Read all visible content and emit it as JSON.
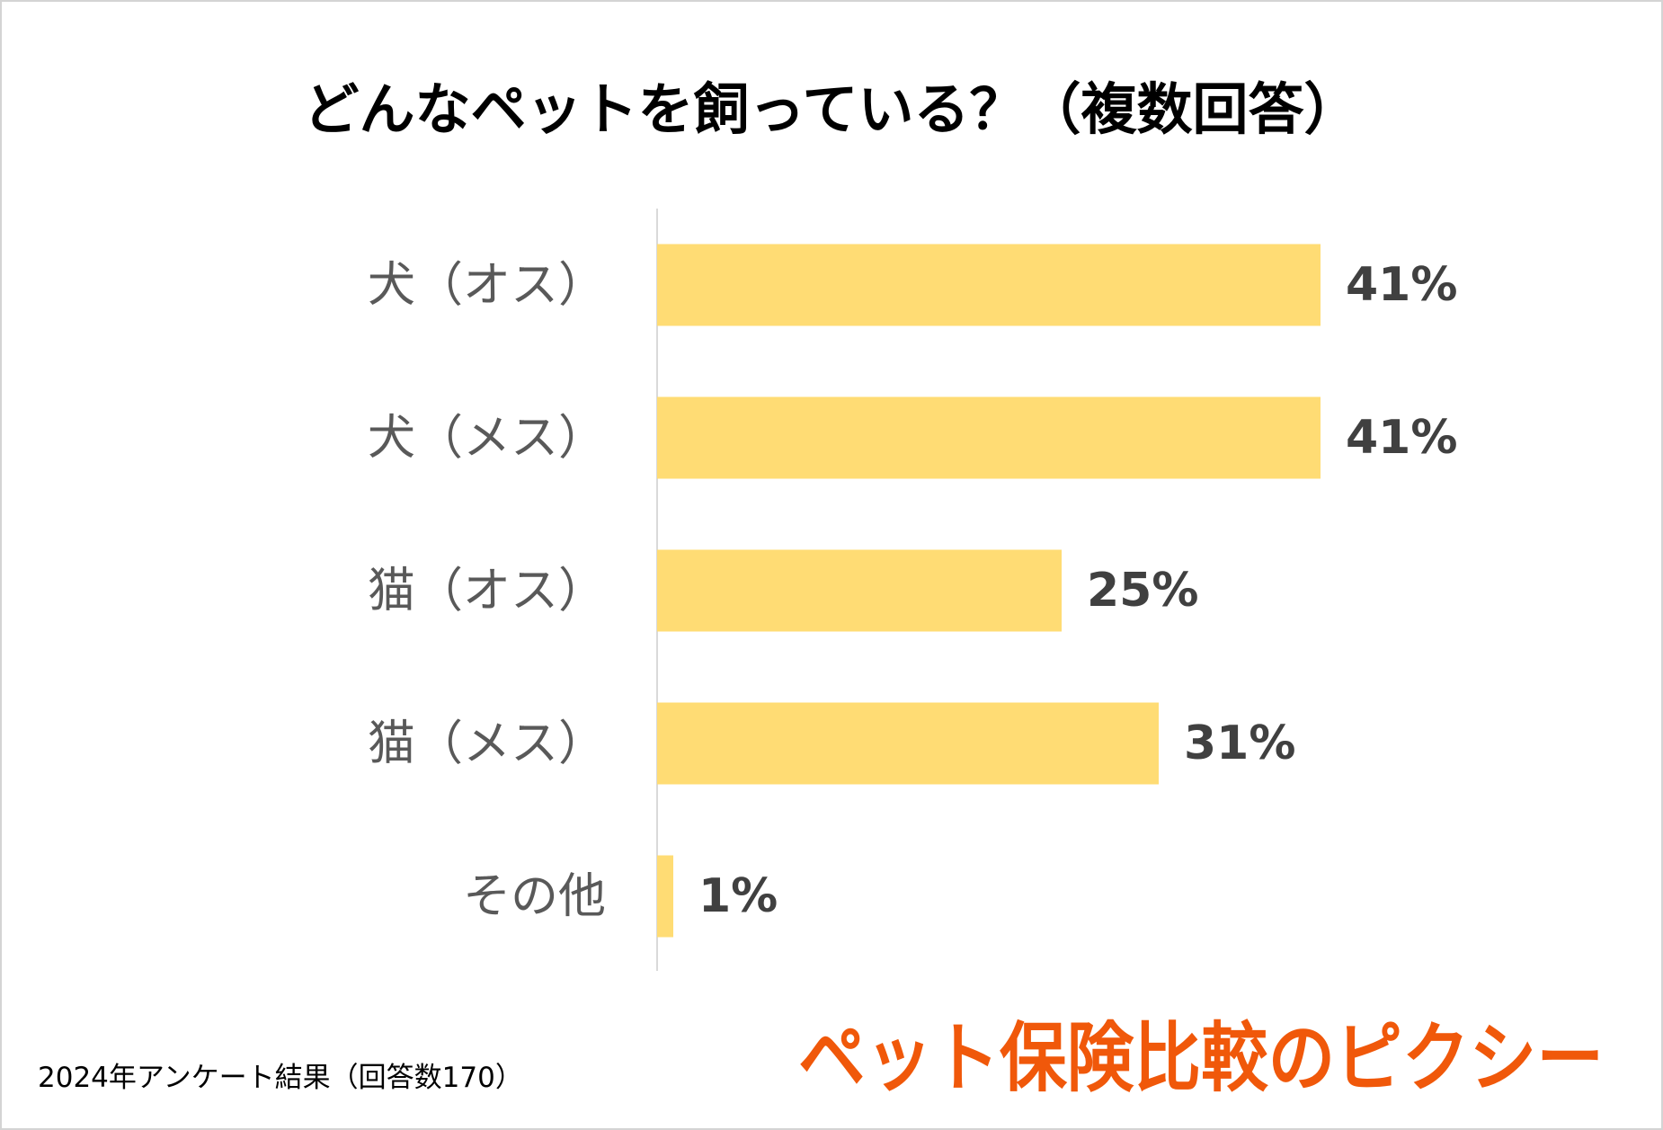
{
  "chart_data": {
    "type": "bar",
    "orientation": "horizontal",
    "title": "どんなペットを飼っている？（複数回答）",
    "categories": [
      "犬（オス）",
      "犬（メス）",
      "猫（オス）",
      "猫（メス）",
      "その他"
    ],
    "values": [
      41,
      41,
      25,
      31,
      1
    ],
    "data_labels": [
      "41%",
      "41%",
      "25%",
      "31%",
      "1%"
    ],
    "xlabel": "",
    "ylabel": "",
    "grid": false,
    "legend": "none",
    "colors": {
      "bar": "#FFDC74",
      "category_label": "#595959",
      "value_label": "#404040",
      "axis": "#D9D9D9"
    }
  },
  "footnote": "2024年アンケート結果（回答数170）",
  "logo": {
    "text": "ペット保険比較のピクシー",
    "color": "#F0580A"
  }
}
